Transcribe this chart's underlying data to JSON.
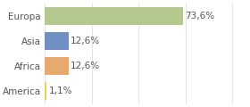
{
  "categories": [
    "Europa",
    "Asia",
    "Africa",
    "America"
  ],
  "values": [
    73.6,
    12.6,
    12.6,
    1.1
  ],
  "bar_colors": [
    "#b5c98e",
    "#7090c4",
    "#e8a96e",
    "#e8d060"
  ],
  "label_texts": [
    "73,6%",
    "12,6%",
    "12,6%",
    "1,1%"
  ],
  "background_color": "#ffffff",
  "text_color": "#555555",
  "bar_height": 0.72,
  "xlim": [
    0,
    108
  ],
  "label_fontsize": 7.5,
  "tick_fontsize": 7.5,
  "grid_color": "#e0e0e0",
  "grid_positions": [
    0,
    25,
    50,
    75,
    100
  ]
}
